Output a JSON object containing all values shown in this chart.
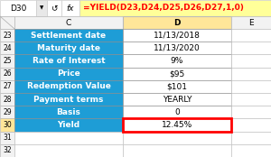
{
  "formula_bar_cell": "D30",
  "formula_bar_formula": "=YIELD(D23,D24,D25,D26,D27,1,0)",
  "rows": [
    {
      "row": 23,
      "label": "Settlement date",
      "value": "11/13/2018",
      "highlight": false
    },
    {
      "row": 24,
      "label": "Maturity date",
      "value": "11/13/2020",
      "highlight": false
    },
    {
      "row": 25,
      "label": "Rate of Interest",
      "value": "9%",
      "highlight": false
    },
    {
      "row": 26,
      "label": "Price",
      "value": "$95",
      "highlight": false
    },
    {
      "row": 27,
      "label": "Redemption Value",
      "value": "$101",
      "highlight": false
    },
    {
      "row": 28,
      "label": "Payment terms",
      "value": "YEARLY",
      "highlight": false
    },
    {
      "row": 29,
      "label": "Basis",
      "value": "0",
      "highlight": false
    },
    {
      "row": 30,
      "label": "Yield",
      "value": "12.45%",
      "highlight": true
    }
  ],
  "extra_rows": [
    31,
    32
  ],
  "blue_label_bg": "#1E9DD6",
  "white_value_bg": "#FFFFFF",
  "highlight_border_color": "#FF0000",
  "label_text_color": "#FFFFFF",
  "value_text_color": "#000000",
  "grid_color": "#BBBBBB",
  "header_bg": "#FFFFFF",
  "formula_bar_border": "#CCCCCC",
  "formula_cell_bg": "#FFFF99",
  "formula_text_color": "#FF0000",
  "col_header_bg": "#F2F2F2",
  "col_header_selected_bg": "#FFE699",
  "row30_b_bg": "#FFE699",
  "font_size": 6.5,
  "header_font_size": 6.5
}
